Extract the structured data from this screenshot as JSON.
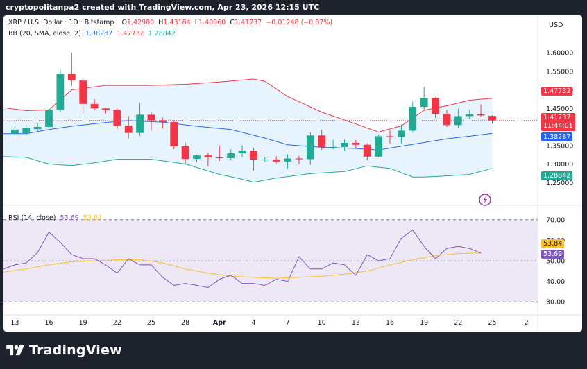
{
  "caption": "cryptopolitanpa2 created with TradingView.com, Apr 23, 2026 12:15 UTC",
  "footer": {
    "brand": "TradingView"
  },
  "header": {
    "symbol": "XRP / U.S. Dollar · 1D · Bitstamp",
    "o_label": "O",
    "o": "1.42980",
    "h_label": "H",
    "h": "1.43184",
    "l_label": "L",
    "l": "1.40960",
    "c_label": "C",
    "c": "1.41737",
    "change": "−0.01248 (−0.87%)",
    "bb_label": "BB (20, SMA, close, 2)",
    "bb_basis": "1.38287",
    "bb_upper": "1.47732",
    "bb_lower": "1.28842",
    "rsi_label": "RSI (14, close)",
    "rsi_value": "53.69",
    "rsi_ma": "53.84",
    "currency": "USD"
  },
  "tags": {
    "price": "1.41737",
    "countdown": "11:44:01",
    "bb_upper": "1.47732",
    "bb_basis": "1.38287",
    "bb_lower": "1.28842",
    "rsi_ma": "53.84",
    "rsi_value": "53.69"
  },
  "colors": {
    "up": "#22ab94",
    "down": "#f23645",
    "bb_upper": "#f23645",
    "bb_basis": "#2962ff",
    "bb_lower": "#22ab94",
    "bb_fill": "#e3f2fd",
    "rsi_line": "#7e57c2",
    "rsi_ma": "#fbc02d",
    "rsi_band": "#ede7f6",
    "price_tag": "#f23645"
  },
  "chart_data": [
    {
      "type": "candlestick",
      "title": "XRP / U.S. Dollar · 1D · Bitstamp",
      "ylim": [
        1.2,
        1.63
      ],
      "yticks": [
        "1.60000",
        "1.55000",
        "1.50000",
        "1.45000",
        "1.40000",
        "1.35000",
        "1.30000",
        "1.25000"
      ],
      "ytick_values": [
        1.6,
        1.55,
        1.5,
        1.45,
        1.4,
        1.35,
        1.3,
        1.25
      ],
      "x_labels": [
        "13",
        "16",
        "19",
        "22",
        "25",
        "28",
        "Apr",
        "4",
        "7",
        "10",
        "13",
        "16",
        "19",
        "22",
        "25",
        "2"
      ],
      "x_label_days": [
        0,
        3,
        6,
        9,
        12,
        15,
        18,
        21,
        24,
        27,
        30,
        33,
        36,
        39,
        42,
        45
      ],
      "days_span": [
        -1,
        46
      ],
      "candles": [
        {
          "d": 0,
          "o": 1.382,
          "h": 1.401,
          "l": 1.372,
          "c": 1.393
        },
        {
          "d": 1,
          "o": 1.383,
          "h": 1.405,
          "l": 1.378,
          "c": 1.398
        },
        {
          "d": 2,
          "o": 1.394,
          "h": 1.41,
          "l": 1.389,
          "c": 1.4
        },
        {
          "d": 3,
          "o": 1.4,
          "h": 1.453,
          "l": 1.395,
          "c": 1.446
        },
        {
          "d": 4,
          "o": 1.446,
          "h": 1.555,
          "l": 1.44,
          "c": 1.543
        },
        {
          "d": 5,
          "o": 1.543,
          "h": 1.6,
          "l": 1.51,
          "c": 1.525
        },
        {
          "d": 6,
          "o": 1.525,
          "h": 1.53,
          "l": 1.435,
          "c": 1.462
        },
        {
          "d": 7,
          "o": 1.462,
          "h": 1.475,
          "l": 1.445,
          "c": 1.45
        },
        {
          "d": 8,
          "o": 1.45,
          "h": 1.452,
          "l": 1.436,
          "c": 1.446
        },
        {
          "d": 9,
          "o": 1.446,
          "h": 1.452,
          "l": 1.395,
          "c": 1.404
        },
        {
          "d": 10,
          "o": 1.404,
          "h": 1.43,
          "l": 1.37,
          "c": 1.384
        },
        {
          "d": 11,
          "o": 1.384,
          "h": 1.465,
          "l": 1.375,
          "c": 1.433
        },
        {
          "d": 12,
          "o": 1.433,
          "h": 1.44,
          "l": 1.39,
          "c": 1.418
        },
        {
          "d": 13,
          "o": 1.418,
          "h": 1.426,
          "l": 1.396,
          "c": 1.413
        },
        {
          "d": 14,
          "o": 1.413,
          "h": 1.418,
          "l": 1.34,
          "c": 1.348
        },
        {
          "d": 15,
          "o": 1.348,
          "h": 1.358,
          "l": 1.3,
          "c": 1.314
        },
        {
          "d": 16,
          "o": 1.314,
          "h": 1.325,
          "l": 1.305,
          "c": 1.323
        },
        {
          "d": 17,
          "o": 1.323,
          "h": 1.33,
          "l": 1.293,
          "c": 1.318
        },
        {
          "d": 18,
          "o": 1.318,
          "h": 1.35,
          "l": 1.308,
          "c": 1.316
        },
        {
          "d": 19,
          "o": 1.316,
          "h": 1.34,
          "l": 1.31,
          "c": 1.329
        },
        {
          "d": 20,
          "o": 1.329,
          "h": 1.35,
          "l": 1.318,
          "c": 1.336
        },
        {
          "d": 21,
          "o": 1.336,
          "h": 1.343,
          "l": 1.282,
          "c": 1.312
        },
        {
          "d": 22,
          "o": 1.312,
          "h": 1.318,
          "l": 1.305,
          "c": 1.312
        },
        {
          "d": 23,
          "o": 1.312,
          "h": 1.321,
          "l": 1.302,
          "c": 1.307
        },
        {
          "d": 24,
          "o": 1.307,
          "h": 1.326,
          "l": 1.288,
          "c": 1.315
        },
        {
          "d": 25,
          "o": 1.315,
          "h": 1.322,
          "l": 1.3,
          "c": 1.313
        },
        {
          "d": 26,
          "o": 1.313,
          "h": 1.385,
          "l": 1.298,
          "c": 1.377
        },
        {
          "d": 27,
          "o": 1.377,
          "h": 1.392,
          "l": 1.338,
          "c": 1.345
        },
        {
          "d": 28,
          "o": 1.345,
          "h": 1.365,
          "l": 1.34,
          "c": 1.346
        },
        {
          "d": 29,
          "o": 1.346,
          "h": 1.366,
          "l": 1.336,
          "c": 1.357
        },
        {
          "d": 30,
          "o": 1.357,
          "h": 1.365,
          "l": 1.342,
          "c": 1.352
        },
        {
          "d": 31,
          "o": 1.352,
          "h": 1.356,
          "l": 1.31,
          "c": 1.32
        },
        {
          "d": 32,
          "o": 1.32,
          "h": 1.38,
          "l": 1.318,
          "c": 1.375
        },
        {
          "d": 33,
          "o": 1.375,
          "h": 1.39,
          "l": 1.355,
          "c": 1.373
        },
        {
          "d": 34,
          "o": 1.373,
          "h": 1.406,
          "l": 1.355,
          "c": 1.39
        },
        {
          "d": 35,
          "o": 1.39,
          "h": 1.468,
          "l": 1.385,
          "c": 1.454
        },
        {
          "d": 36,
          "o": 1.454,
          "h": 1.508,
          "l": 1.445,
          "c": 1.478
        },
        {
          "d": 37,
          "o": 1.478,
          "h": 1.48,
          "l": 1.425,
          "c": 1.435
        },
        {
          "d": 38,
          "o": 1.435,
          "h": 1.445,
          "l": 1.4,
          "c": 1.405
        },
        {
          "d": 39,
          "o": 1.405,
          "h": 1.449,
          "l": 1.398,
          "c": 1.429
        },
        {
          "d": 40,
          "o": 1.429,
          "h": 1.446,
          "l": 1.422,
          "c": 1.434
        },
        {
          "d": 41,
          "o": 1.434,
          "h": 1.461,
          "l": 1.427,
          "c": 1.431
        },
        {
          "d": 42,
          "o": 1.4298,
          "h": 1.43184,
          "l": 1.4096,
          "c": 1.41737
        }
      ],
      "bb_upper": [
        {
          "d": -1,
          "v": 1.452
        },
        {
          "d": 1,
          "v": 1.444
        },
        {
          "d": 3,
          "v": 1.446
        },
        {
          "d": 5,
          "v": 1.5
        },
        {
          "d": 8,
          "v": 1.512
        },
        {
          "d": 12,
          "v": 1.512
        },
        {
          "d": 15,
          "v": 1.515
        },
        {
          "d": 18,
          "v": 1.521
        },
        {
          "d": 21,
          "v": 1.529
        },
        {
          "d": 22,
          "v": 1.523
        },
        {
          "d": 24,
          "v": 1.482
        },
        {
          "d": 27,
          "v": 1.44
        },
        {
          "d": 30,
          "v": 1.408
        },
        {
          "d": 32,
          "v": 1.386
        },
        {
          "d": 34,
          "v": 1.403
        },
        {
          "d": 36,
          "v": 1.445
        },
        {
          "d": 38,
          "v": 1.457
        },
        {
          "d": 40,
          "v": 1.472
        },
        {
          "d": 42,
          "v": 1.47732
        }
      ],
      "bb_basis": [
        {
          "d": -1,
          "v": 1.382
        },
        {
          "d": 1,
          "v": 1.382
        },
        {
          "d": 3,
          "v": 1.393
        },
        {
          "d": 5,
          "v": 1.402
        },
        {
          "d": 8,
          "v": 1.412
        },
        {
          "d": 10,
          "v": 1.417
        },
        {
          "d": 13,
          "v": 1.413
        },
        {
          "d": 16,
          "v": 1.402
        },
        {
          "d": 19,
          "v": 1.393
        },
        {
          "d": 22,
          "v": 1.37
        },
        {
          "d": 24,
          "v": 1.352
        },
        {
          "d": 27,
          "v": 1.345
        },
        {
          "d": 30,
          "v": 1.342
        },
        {
          "d": 32,
          "v": 1.338
        },
        {
          "d": 34,
          "v": 1.348
        },
        {
          "d": 36,
          "v": 1.358
        },
        {
          "d": 38,
          "v": 1.368
        },
        {
          "d": 40,
          "v": 1.375
        },
        {
          "d": 42,
          "v": 1.38287
        }
      ],
      "bb_lower": [
        {
          "d": -1,
          "v": 1.32
        },
        {
          "d": 1,
          "v": 1.318
        },
        {
          "d": 3,
          "v": 1.3
        },
        {
          "d": 5,
          "v": 1.296
        },
        {
          "d": 7,
          "v": 1.303
        },
        {
          "d": 9,
          "v": 1.313
        },
        {
          "d": 12,
          "v": 1.313
        },
        {
          "d": 15,
          "v": 1.3
        },
        {
          "d": 18,
          "v": 1.272
        },
        {
          "d": 20,
          "v": 1.259
        },
        {
          "d": 21,
          "v": 1.251
        },
        {
          "d": 23,
          "v": 1.262
        },
        {
          "d": 26,
          "v": 1.274
        },
        {
          "d": 29,
          "v": 1.28
        },
        {
          "d": 31,
          "v": 1.295
        },
        {
          "d": 33,
          "v": 1.288
        },
        {
          "d": 35,
          "v": 1.265
        },
        {
          "d": 36,
          "v": 1.265
        },
        {
          "d": 38,
          "v": 1.268
        },
        {
          "d": 40,
          "v": 1.272
        },
        {
          "d": 42,
          "v": 1.28842
        }
      ]
    },
    {
      "type": "line",
      "title": "RSI (14, close)",
      "ylim": [
        25,
        75
      ],
      "yticks": [
        "70.00",
        "60.00",
        "50.00",
        "40.00",
        "30.00"
      ],
      "ytick_values": [
        70,
        60,
        50,
        40,
        30
      ],
      "band": [
        30,
        70
      ],
      "series": [
        {
          "name": "RSI",
          "points": [
            {
              "d": -1,
              "v": 46
            },
            {
              "d": 0,
              "v": 48
            },
            {
              "d": 1,
              "v": 49
            },
            {
              "d": 2,
              "v": 54
            },
            {
              "d": 3,
              "v": 64
            },
            {
              "d": 4,
              "v": 59
            },
            {
              "d": 5,
              "v": 53
            },
            {
              "d": 6,
              "v": 51
            },
            {
              "d": 7,
              "v": 51
            },
            {
              "d": 8,
              "v": 48
            },
            {
              "d": 9,
              "v": 44
            },
            {
              "d": 10,
              "v": 51
            },
            {
              "d": 11,
              "v": 48
            },
            {
              "d": 12,
              "v": 48
            },
            {
              "d": 13,
              "v": 42
            },
            {
              "d": 14,
              "v": 38
            },
            {
              "d": 15,
              "v": 39
            },
            {
              "d": 16,
              "v": 38
            },
            {
              "d": 17,
              "v": 37
            },
            {
              "d": 18,
              "v": 41
            },
            {
              "d": 19,
              "v": 43
            },
            {
              "d": 20,
              "v": 39
            },
            {
              "d": 21,
              "v": 39
            },
            {
              "d": 22,
              "v": 38
            },
            {
              "d": 23,
              "v": 41
            },
            {
              "d": 24,
              "v": 40
            },
            {
              "d": 25,
              "v": 52
            },
            {
              "d": 26,
              "v": 46
            },
            {
              "d": 27,
              "v": 46
            },
            {
              "d": 28,
              "v": 49
            },
            {
              "d": 29,
              "v": 48
            },
            {
              "d": 30,
              "v": 43
            },
            {
              "d": 31,
              "v": 53
            },
            {
              "d": 32,
              "v": 50
            },
            {
              "d": 33,
              "v": 51
            },
            {
              "d": 34,
              "v": 61
            },
            {
              "d": 35,
              "v": 65
            },
            {
              "d": 36,
              "v": 57
            },
            {
              "d": 37,
              "v": 51
            },
            {
              "d": 38,
              "v": 56
            },
            {
              "d": 39,
              "v": 57
            },
            {
              "d": 40,
              "v": 56
            },
            {
              "d": 41,
              "v": 53.69
            }
          ]
        },
        {
          "name": "RSI-based MA",
          "points": [
            {
              "d": -1,
              "v": 44.5
            },
            {
              "d": 1,
              "v": 46
            },
            {
              "d": 3,
              "v": 48
            },
            {
              "d": 5,
              "v": 49.5
            },
            {
              "d": 7,
              "v": 50
            },
            {
              "d": 9,
              "v": 50.5
            },
            {
              "d": 11,
              "v": 50.5
            },
            {
              "d": 13,
              "v": 49
            },
            {
              "d": 15,
              "v": 46
            },
            {
              "d": 17,
              "v": 44
            },
            {
              "d": 19,
              "v": 42.5
            },
            {
              "d": 21,
              "v": 42
            },
            {
              "d": 23,
              "v": 41.5
            },
            {
              "d": 25,
              "v": 42
            },
            {
              "d": 27,
              "v": 42.5
            },
            {
              "d": 29,
              "v": 43.5
            },
            {
              "d": 31,
              "v": 45
            },
            {
              "d": 33,
              "v": 48
            },
            {
              "d": 35,
              "v": 50.5
            },
            {
              "d": 37,
              "v": 52.5
            },
            {
              "d": 39,
              "v": 53.5
            },
            {
              "d": 41,
              "v": 53.84
            }
          ]
        }
      ]
    }
  ]
}
